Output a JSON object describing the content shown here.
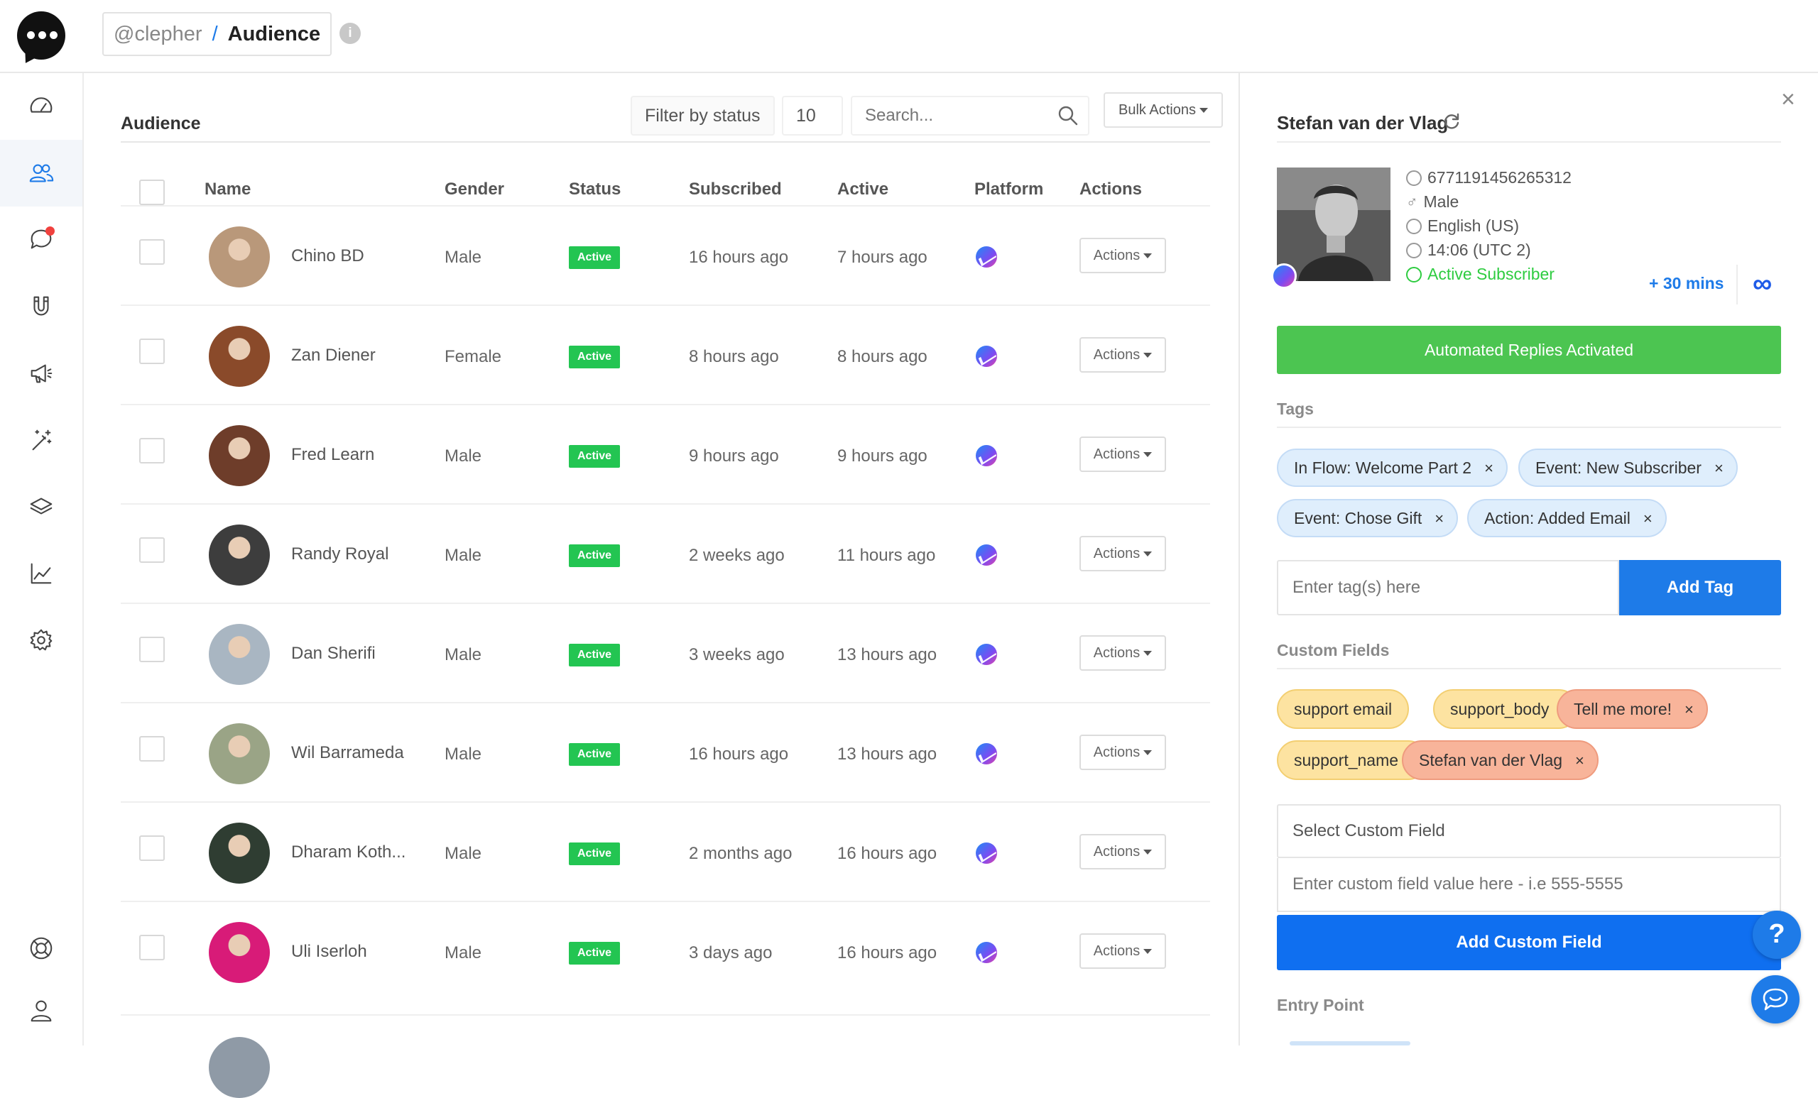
{
  "breadcrumb": {
    "account": "@clepher",
    "separator": "/",
    "page": "Audience"
  },
  "info_icon": "i",
  "nav": [
    "dashboard-icon",
    "audience-icon",
    "chat-icon",
    "magnet-icon",
    "megaphone-icon",
    "magic-wand-icon",
    "layers-icon",
    "analytics-icon",
    "settings-icon",
    "help-circle-icon",
    "user-icon"
  ],
  "audience": {
    "title": "Audience",
    "filter_label": "Filter by status",
    "page_size": "10",
    "search_placeholder": "Search...",
    "bulk_label": "Bulk Actions",
    "columns": {
      "name": "Name",
      "gender": "Gender",
      "status": "Status",
      "subscribed": "Subscribed",
      "active": "Active",
      "platform": "Platform",
      "actions": "Actions"
    },
    "rows": [
      {
        "name": "Chino BD",
        "gender": "Male",
        "status": "Active",
        "subscribed": "16 hours ago",
        "active": "7 hours ago",
        "action": "Actions",
        "avatar_color": "#b9987a"
      },
      {
        "name": "Zan Diener",
        "gender": "Female",
        "status": "Active",
        "subscribed": "8 hours ago",
        "active": "8 hours ago",
        "action": "Actions",
        "avatar_color": "#8a4a2a"
      },
      {
        "name": "Fred Learn",
        "gender": "Male",
        "status": "Active",
        "subscribed": "9 hours ago",
        "active": "9 hours ago",
        "action": "Actions",
        "avatar_color": "#6e3d2a"
      },
      {
        "name": "Randy Royal",
        "gender": "Male",
        "status": "Active",
        "subscribed": "2 weeks ago",
        "active": "11 hours ago",
        "action": "Actions",
        "avatar_color": "#3d3d3d"
      },
      {
        "name": "Dan Sherifi",
        "gender": "Male",
        "status": "Active",
        "subscribed": "3 weeks ago",
        "active": "13 hours ago",
        "action": "Actions",
        "avatar_color": "#a9b6c2"
      },
      {
        "name": "Wil Barrameda",
        "gender": "Male",
        "status": "Active",
        "subscribed": "16 hours ago",
        "active": "13 hours ago",
        "action": "Actions",
        "avatar_color": "#9aa486"
      },
      {
        "name": "Dharam Koth...",
        "gender": "Male",
        "status": "Active",
        "subscribed": "2 months ago",
        "active": "16 hours ago",
        "action": "Actions",
        "avatar_color": "#2f3d32"
      },
      {
        "name": "Uli Iserloh",
        "gender": "Male",
        "status": "Active",
        "subscribed": "3 days ago",
        "active": "16 hours ago",
        "action": "Actions",
        "avatar_color": "#d81b78"
      }
    ]
  },
  "profile": {
    "name": "Stefan van der Vlag",
    "id": "6771191456265312",
    "gender": "Male",
    "language": "English (US)",
    "time": "14:06 (UTC 2)",
    "status": "Active Subscriber",
    "plus_time": "+ 30 mins",
    "infinity": "∞",
    "automation_label": "Automated Replies Activated",
    "tags_label": "Tags",
    "tags": [
      "In Flow: Welcome Part 2",
      "Event: New Subscriber",
      "Event: Chose Gift",
      "Action: Added Email"
    ],
    "tag_placeholder": "Enter tag(s) here",
    "add_tag_label": "Add Tag",
    "custom_fields_label": "Custom Fields",
    "custom_fields": [
      {
        "key": "support email",
        "value": ""
      },
      {
        "key": "support_body",
        "value": "Tell me more!"
      },
      {
        "key": "support_name",
        "value": "Stefan van der Vlag"
      }
    ],
    "select_custom_field": "Select Custom Field",
    "custom_value_placeholder": "Enter custom field value here - i.e 555-5555",
    "add_custom_field_label": "Add Custom Field",
    "entry_point_label": "Entry Point"
  },
  "help_label": "?",
  "close_label": "×",
  "remove_label": "×",
  "colors": {
    "primary": "#1e7be8",
    "success": "#23c552",
    "automation": "#4cc551",
    "tag_bg": "#dfeefc",
    "field_key_bg": "#fde3a1",
    "field_value_bg": "#f8b49a"
  }
}
